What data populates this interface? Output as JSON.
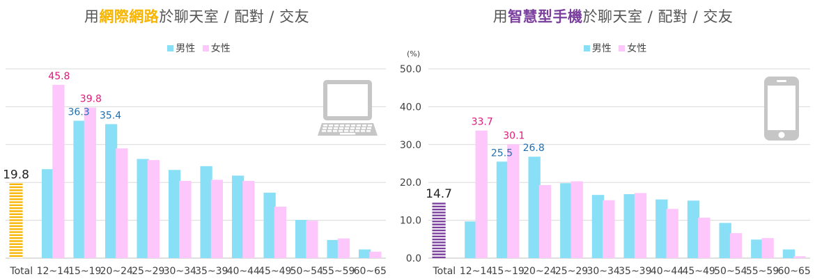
{
  "colors": {
    "male": "#88dff6",
    "female": "#fdc7fc",
    "male_label": "#1f6fb2",
    "female_label": "#e0177a",
    "internet_accent": "#f7b500",
    "mobile_accent": "#7b3f9e",
    "icon": "#c6c6c6",
    "grid": "#d9d9d9"
  },
  "unit_label": "(%)",
  "chart_data": [
    {
      "type": "bar",
      "title_prefix": "用",
      "title_highlight": "網際網路",
      "title_suffix": "於聊天室 / 配對 / 交友",
      "legend": [
        "男性",
        "女性"
      ],
      "legend_placement": "top-center",
      "device_icon": "laptop-icon",
      "total_label": "Total",
      "total_value": 19.8,
      "categories": [
        "12~14",
        "15~19",
        "20~24",
        "25~29",
        "30~34",
        "35~39",
        "40~44",
        "45~49",
        "50~54",
        "55~59",
        "60~65"
      ],
      "series": [
        {
          "name": "男性",
          "values": [
            23.5,
            36.3,
            35.4,
            26.2,
            23.3,
            24.3,
            21.8,
            17.3,
            10.1,
            4.8,
            2.3
          ]
        },
        {
          "name": "女性",
          "values": [
            45.8,
            39.8,
            29.0,
            25.9,
            20.4,
            20.7,
            20.4,
            13.6,
            9.9,
            5.2,
            1.7
          ]
        }
      ],
      "labeled_values": [
        {
          "category": "12~14",
          "series": "女性",
          "text": "45.8"
        },
        {
          "category": "15~19",
          "series": "男性",
          "text": "36.3"
        },
        {
          "category": "15~19",
          "series": "女性",
          "text": "39.8"
        },
        {
          "category": "20~24",
          "series": "男性",
          "text": "35.4"
        }
      ],
      "ylim": [
        0,
        50
      ],
      "grid": true
    },
    {
      "type": "bar",
      "title_prefix": "用",
      "title_highlight": "智慧型手機",
      "title_suffix": "於聊天室 / 配對 / 交友",
      "legend": [
        "男性",
        "女性"
      ],
      "legend_placement": "top-center",
      "device_icon": "smartphone-icon",
      "total_label": "Total",
      "total_value": 14.7,
      "categories": [
        "12~14",
        "15~19",
        "20~24",
        "25~29",
        "30~34",
        "35~39",
        "40~44",
        "45~49",
        "50~54",
        "55~59",
        "60~65"
      ],
      "series": [
        {
          "name": "男性",
          "values": [
            9.7,
            25.5,
            26.8,
            19.8,
            16.7,
            16.9,
            15.5,
            15.2,
            9.3,
            4.9,
            2.3
          ]
        },
        {
          "name": "女性",
          "values": [
            33.7,
            30.1,
            19.3,
            20.3,
            15.3,
            17.2,
            13.0,
            10.7,
            6.6,
            5.3,
            0.5
          ]
        }
      ],
      "labeled_values": [
        {
          "category": "12~14",
          "series": "女性",
          "text": "33.7"
        },
        {
          "category": "15~19",
          "series": "男性",
          "text": "25.5"
        },
        {
          "category": "15~19",
          "series": "女性",
          "text": "30.1"
        },
        {
          "category": "20~24",
          "series": "男性",
          "text": "26.8"
        }
      ],
      "ylim": [
        0,
        50
      ],
      "yticks": [
        "0.0",
        "10.0",
        "20.0",
        "30.0",
        "40.0",
        "50.0"
      ],
      "grid": true
    }
  ]
}
